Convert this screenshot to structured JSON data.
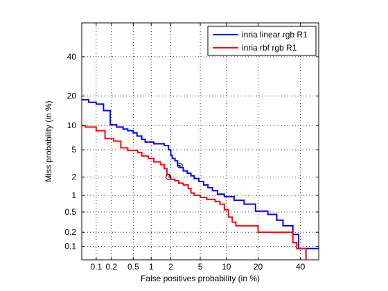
{
  "chart_data": {
    "type": "line",
    "title": "",
    "xlabel": "False positives probability (in %)",
    "ylabel": "Miss probability (in %)",
    "xscale": "normal-deviate (probit)",
    "yscale": "normal-deviate (probit)",
    "xlim": [
      0.05,
      50
    ],
    "ylim": [
      0.05,
      60
    ],
    "xticks": [
      0.1,
      0.2,
      0.5,
      1,
      2,
      5,
      10,
      20,
      40
    ],
    "xtick_labels": [
      "0.1",
      "0.2",
      "0.5",
      "1",
      "2",
      "5",
      "10",
      "20",
      "40"
    ],
    "yticks": [
      0.1,
      0.2,
      0.5,
      1,
      2,
      5,
      10,
      20,
      40
    ],
    "ytick_labels": [
      "0.1",
      "0.2",
      "0.5",
      "1",
      "2",
      "5",
      "10",
      "20",
      "40"
    ],
    "grid": "dotted",
    "legend_position": "top-right",
    "series": [
      {
        "name": "inria linear rgb R1",
        "color": "#0000ff",
        "points": [
          [
            0.05,
            18.5
          ],
          [
            0.07,
            18.5
          ],
          [
            0.07,
            17.5
          ],
          [
            0.1,
            17.5
          ],
          [
            0.1,
            16.8
          ],
          [
            0.14,
            16.8
          ],
          [
            0.14,
            14.5
          ],
          [
            0.19,
            14.5
          ],
          [
            0.19,
            10.2
          ],
          [
            0.25,
            10.2
          ],
          [
            0.25,
            9.6
          ],
          [
            0.33,
            9.6
          ],
          [
            0.33,
            9.1
          ],
          [
            0.4,
            9.1
          ],
          [
            0.4,
            8.7
          ],
          [
            0.5,
            8.7
          ],
          [
            0.5,
            8.2
          ],
          [
            0.58,
            8.2
          ],
          [
            0.58,
            7.5
          ],
          [
            0.7,
            7.5
          ],
          [
            0.7,
            6.8
          ],
          [
            0.8,
            6.8
          ],
          [
            0.8,
            6.3
          ],
          [
            1.1,
            6.3
          ],
          [
            1.1,
            6.0
          ],
          [
            1.6,
            6.0
          ],
          [
            1.6,
            5.7
          ],
          [
            1.85,
            5.7
          ],
          [
            1.85,
            5.0
          ],
          [
            2.0,
            5.0
          ],
          [
            2.0,
            4.2
          ],
          [
            2.1,
            4.2
          ],
          [
            2.1,
            3.8
          ],
          [
            2.3,
            3.8
          ],
          [
            2.3,
            3.5
          ],
          [
            2.5,
            3.5
          ],
          [
            2.5,
            3.0
          ],
          [
            2.7,
            3.0
          ],
          [
            2.7,
            2.8
          ],
          [
            3.0,
            2.8
          ],
          [
            3.0,
            2.5
          ],
          [
            3.4,
            2.5
          ],
          [
            3.4,
            2.3
          ],
          [
            3.8,
            2.3
          ],
          [
            3.8,
            2.1
          ],
          [
            4.2,
            2.1
          ],
          [
            4.2,
            1.9
          ],
          [
            4.8,
            1.9
          ],
          [
            4.8,
            1.7
          ],
          [
            5.5,
            1.7
          ],
          [
            5.5,
            1.5
          ],
          [
            6.2,
            1.5
          ],
          [
            6.2,
            1.35
          ],
          [
            7.0,
            1.35
          ],
          [
            7.0,
            1.2
          ],
          [
            8.0,
            1.2
          ],
          [
            8.0,
            1.05
          ],
          [
            9.5,
            1.05
          ],
          [
            9.5,
            0.95
          ],
          [
            12.0,
            0.95
          ],
          [
            12.0,
            0.82
          ],
          [
            15.0,
            0.82
          ],
          [
            15.0,
            0.7
          ],
          [
            19.0,
            0.7
          ],
          [
            19.0,
            0.52
          ],
          [
            24.0,
            0.52
          ],
          [
            24.0,
            0.45
          ],
          [
            28.0,
            0.45
          ],
          [
            28.0,
            0.35
          ],
          [
            31.0,
            0.35
          ],
          [
            31.0,
            0.27
          ],
          [
            36.0,
            0.27
          ],
          [
            36.0,
            0.18
          ],
          [
            39.0,
            0.18
          ],
          [
            39.0,
            0.09
          ],
          [
            50.0,
            0.09
          ]
        ],
        "marker": [
          2.7,
          3.0
        ]
      },
      {
        "name": "inria rbf rgb R1",
        "color": "#ff0000",
        "points": [
          [
            0.05,
            10.0
          ],
          [
            0.06,
            10.0
          ],
          [
            0.06,
            9.6
          ],
          [
            0.1,
            9.6
          ],
          [
            0.1,
            8.7
          ],
          [
            0.15,
            8.7
          ],
          [
            0.15,
            7.0
          ],
          [
            0.22,
            7.0
          ],
          [
            0.22,
            6.5
          ],
          [
            0.3,
            6.5
          ],
          [
            0.3,
            5.3
          ],
          [
            0.4,
            5.3
          ],
          [
            0.4,
            4.9
          ],
          [
            0.6,
            4.9
          ],
          [
            0.6,
            4.6
          ],
          [
            0.7,
            4.6
          ],
          [
            0.7,
            4.1
          ],
          [
            0.9,
            4.1
          ],
          [
            0.9,
            3.8
          ],
          [
            1.1,
            3.8
          ],
          [
            1.1,
            3.4
          ],
          [
            1.4,
            3.4
          ],
          [
            1.4,
            3.1
          ],
          [
            1.6,
            3.1
          ],
          [
            1.6,
            2.7
          ],
          [
            1.75,
            2.7
          ],
          [
            1.75,
            2.2
          ],
          [
            1.9,
            2.2
          ],
          [
            1.9,
            2.0
          ],
          [
            2.0,
            2.0
          ],
          [
            2.0,
            1.85
          ],
          [
            2.3,
            1.85
          ],
          [
            2.3,
            1.75
          ],
          [
            2.6,
            1.75
          ],
          [
            2.6,
            1.6
          ],
          [
            3.0,
            1.6
          ],
          [
            3.0,
            1.5
          ],
          [
            3.5,
            1.5
          ],
          [
            3.5,
            1.3
          ],
          [
            3.8,
            1.3
          ],
          [
            3.8,
            1.1
          ],
          [
            4.2,
            1.1
          ],
          [
            4.2,
            1.0
          ],
          [
            5.0,
            1.0
          ],
          [
            5.0,
            0.92
          ],
          [
            6.0,
            0.92
          ],
          [
            6.0,
            0.85
          ],
          [
            7.5,
            0.85
          ],
          [
            7.5,
            0.78
          ],
          [
            8.5,
            0.78
          ],
          [
            8.5,
            0.7
          ],
          [
            9.5,
            0.7
          ],
          [
            9.5,
            0.55
          ],
          [
            10.5,
            0.55
          ],
          [
            10.5,
            0.4
          ],
          [
            11.5,
            0.4
          ],
          [
            11.5,
            0.32
          ],
          [
            12.5,
            0.32
          ],
          [
            12.5,
            0.27
          ],
          [
            20.0,
            0.27
          ],
          [
            20.0,
            0.2
          ],
          [
            36.0,
            0.2
          ],
          [
            36.0,
            0.12
          ],
          [
            38.0,
            0.12
          ],
          [
            38.0,
            0.09
          ],
          [
            43.0,
            0.09
          ],
          [
            43.0,
            0.05
          ]
        ],
        "marker": [
          1.85,
          2.0
        ]
      }
    ]
  }
}
